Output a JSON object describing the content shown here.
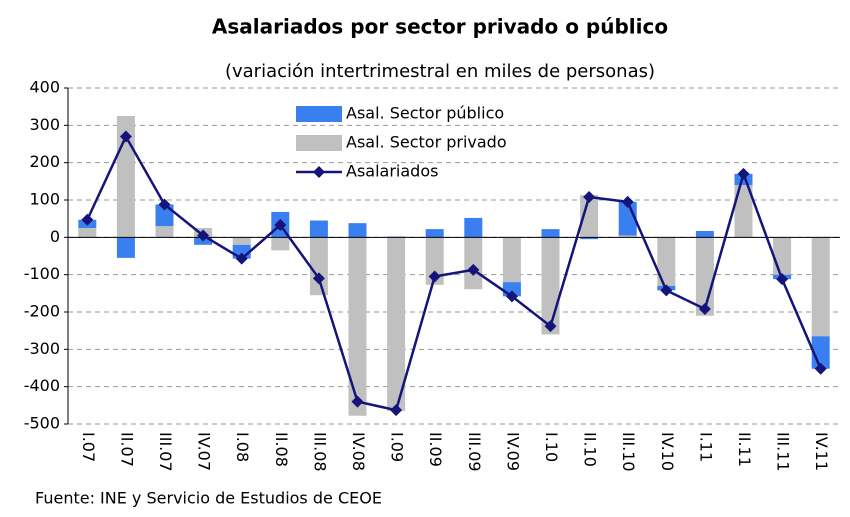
{
  "chart_data": {
    "type": "bar-line",
    "title": "Asalariados por sector privado o público",
    "subtitle": "(variación intertrimestral en miles de personas)",
    "source": "Fuente: INE y Servicio de Estudios de CEOE",
    "categories": [
      "I.07",
      "II.07",
      "III.07",
      "IV.07",
      "I.08",
      "II.08",
      "III.08",
      "IV.08",
      "I.09",
      "II.09",
      "III.09",
      "IV.09",
      "I.10",
      "II.10",
      "III.10",
      "IV.10",
      "I.11",
      "II.11",
      "III.11",
      "IV.11"
    ],
    "series": [
      {
        "name": "Asal. Sector público",
        "type": "bar",
        "color": "#3a7ff0",
        "values": [
          22,
          -55,
          58,
          -20,
          -37,
          68,
          45,
          38,
          2,
          22,
          52,
          -38,
          22,
          -5,
          90,
          -12,
          17,
          30,
          -12,
          -87
        ]
      },
      {
        "name": "Asal. Sector privado",
        "type": "bar",
        "color": "#c0c0c0",
        "values": [
          25,
          325,
          30,
          25,
          -20,
          -35,
          -155,
          -478,
          -465,
          -127,
          -139,
          -120,
          -260,
          113,
          5,
          -130,
          -210,
          140,
          -100,
          -265
        ]
      },
      {
        "name": "Asalariados",
        "type": "line",
        "color": "#14147a",
        "values": [
          47,
          270,
          88,
          5,
          -57,
          33,
          -110,
          -440,
          -463,
          -105,
          -87,
          -158,
          -238,
          108,
          95,
          -142,
          -192,
          170,
          -112,
          -352
        ]
      }
    ],
    "ylim": [
      -500,
      400
    ],
    "yticks": [
      400,
      300,
      200,
      100,
      0,
      -100,
      -200,
      -300,
      -400,
      -500
    ],
    "grid": true
  }
}
